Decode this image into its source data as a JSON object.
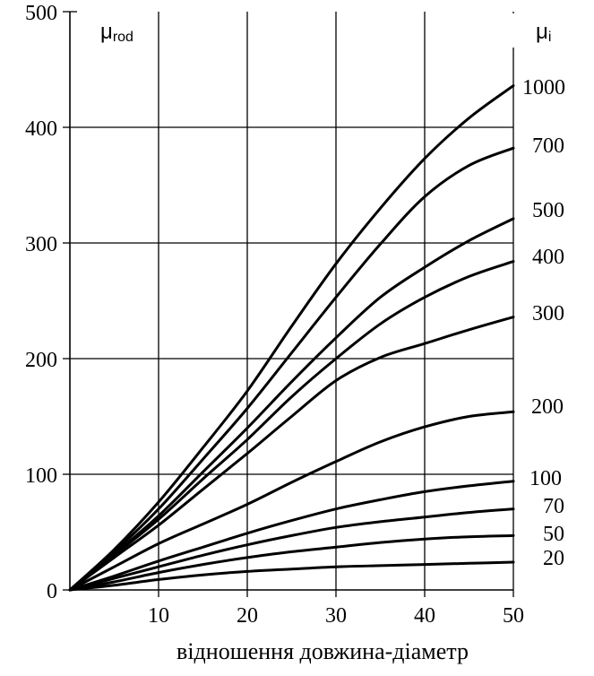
{
  "chart_data": {
    "type": "line",
    "xlabel": "відношення довжина-діаметр",
    "ylabel_symbol": "μ",
    "ylabel_subscript": "rod",
    "right_label_symbol": "μ",
    "right_label_subscript": "i",
    "xlim": [
      0,
      50
    ],
    "ylim": [
      0,
      500
    ],
    "x_ticks": [
      10,
      20,
      30,
      40,
      50
    ],
    "y_ticks": [
      0,
      100,
      200,
      300,
      400,
      500
    ],
    "grid": true,
    "series": [
      {
        "name": "1000",
        "x": [
          0,
          5,
          10,
          15,
          20,
          25,
          30,
          35,
          40,
          45,
          50
        ],
        "y": [
          0,
          35,
          76,
          123,
          172,
          228,
          282,
          330,
          373,
          408,
          436
        ]
      },
      {
        "name": "700",
        "x": [
          0,
          5,
          10,
          15,
          20,
          25,
          30,
          35,
          40,
          45,
          50
        ],
        "y": [
          0,
          33,
          70,
          113,
          157,
          205,
          253,
          299,
          340,
          367,
          382
        ]
      },
      {
        "name": "500",
        "x": [
          0,
          5,
          10,
          15,
          20,
          25,
          30,
          35,
          40,
          45,
          50
        ],
        "y": [
          0,
          31,
          64,
          102,
          140,
          180,
          218,
          253,
          279,
          302,
          321
        ]
      },
      {
        "name": "400",
        "x": [
          0,
          5,
          10,
          15,
          20,
          25,
          30,
          35,
          40,
          45,
          50
        ],
        "y": [
          0,
          30,
          61,
          96,
          130,
          167,
          200,
          230,
          253,
          271,
          284
        ]
      },
      {
        "name": "300",
        "x": [
          0,
          5,
          10,
          15,
          20,
          25,
          30,
          35,
          40,
          45,
          50
        ],
        "y": [
          0,
          28,
          56,
          87,
          118,
          150,
          181,
          201,
          213,
          225,
          236
        ]
      },
      {
        "name": "200",
        "x": [
          0,
          5,
          10,
          15,
          20,
          25,
          30,
          35,
          40,
          45,
          50
        ],
        "y": [
          0,
          20,
          40,
          57,
          74,
          93,
          111,
          128,
          141,
          150,
          154
        ]
      },
      {
        "name": "100",
        "x": [
          0,
          5,
          10,
          15,
          20,
          25,
          30,
          35,
          40,
          45,
          50
        ],
        "y": [
          0,
          12,
          25,
          37,
          49,
          60,
          70,
          78,
          85,
          90,
          94
        ]
      },
      {
        "name": "70",
        "x": [
          0,
          5,
          10,
          15,
          20,
          25,
          30,
          35,
          40,
          45,
          50
        ],
        "y": [
          0,
          10,
          20,
          30,
          39,
          47,
          54,
          59,
          63,
          67,
          70
        ]
      },
      {
        "name": "50",
        "x": [
          0,
          5,
          10,
          15,
          20,
          25,
          30,
          35,
          40,
          45,
          50
        ],
        "y": [
          0,
          7,
          15,
          22,
          28,
          33,
          37,
          41,
          44,
          46,
          47
        ]
      },
      {
        "name": "20",
        "x": [
          0,
          5,
          10,
          15,
          20,
          25,
          30,
          35,
          40,
          45,
          50
        ],
        "y": [
          0,
          4,
          9,
          13,
          16,
          18,
          20,
          21,
          22,
          23,
          24
        ]
      }
    ]
  }
}
